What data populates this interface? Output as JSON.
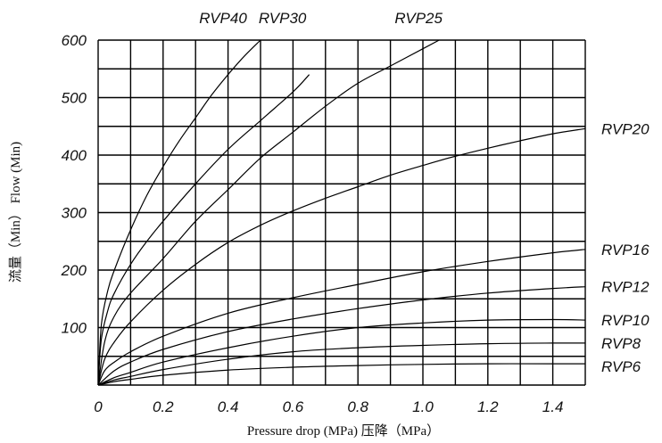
{
  "chart_data": {
    "type": "line",
    "xlabel": "Pressure drop (MPa)   压降（MPa）",
    "ylabel": "流量（Min）  Flow (Min)",
    "xlim": [
      0,
      1.5
    ],
    "ylim": [
      0,
      600
    ],
    "x_ticks": [
      {
        "v": 0,
        "t": "0"
      },
      {
        "v": 0.2,
        "t": "0.2"
      },
      {
        "v": 0.4,
        "t": "0.4"
      },
      {
        "v": 0.6,
        "t": "0.6"
      },
      {
        "v": 0.8,
        "t": "0.8"
      },
      {
        "v": 1.0,
        "t": "1.0"
      },
      {
        "v": 1.2,
        "t": "1.2"
      },
      {
        "v": 1.4,
        "t": "1.4"
      }
    ],
    "y_ticks": [
      {
        "v": 100,
        "t": "100"
      },
      {
        "v": 200,
        "t": "200"
      },
      {
        "v": 300,
        "t": "300"
      },
      {
        "v": 400,
        "t": "400"
      },
      {
        "v": 500,
        "t": "500"
      },
      {
        "v": 600,
        "t": "600"
      }
    ],
    "grid": true,
    "grid_x_step": 0.1,
    "grid_y_step": 50,
    "series": [
      {
        "name": "RVP40",
        "label_pos": "top",
        "x": [
          0,
          0.01,
          0.03,
          0.05,
          0.1,
          0.15,
          0.2,
          0.25,
          0.3,
          0.35,
          0.4,
          0.45,
          0.5
        ],
        "y": [
          0,
          105,
          165,
          200,
          270,
          330,
          380,
          425,
          465,
          505,
          540,
          572,
          600
        ]
      },
      {
        "name": "RVP30",
        "label_pos": "top",
        "x": [
          0,
          0.01,
          0.03,
          0.05,
          0.1,
          0.15,
          0.2,
          0.3,
          0.4,
          0.5,
          0.6,
          0.65
        ],
        "y": [
          0,
          80,
          130,
          160,
          210,
          250,
          285,
          350,
          410,
          460,
          510,
          540
        ]
      },
      {
        "name": "RVP25",
        "label_pos": "top",
        "x": [
          0,
          0.02,
          0.05,
          0.1,
          0.2,
          0.3,
          0.4,
          0.5,
          0.6,
          0.7,
          0.8,
          0.9,
          1.0,
          1.05
        ],
        "y": [
          0,
          75,
          120,
          160,
          220,
          285,
          340,
          395,
          440,
          485,
          525,
          555,
          585,
          600
        ]
      },
      {
        "name": "RVP20",
        "label_pos": "right",
        "x": [
          0,
          0.02,
          0.05,
          0.1,
          0.2,
          0.3,
          0.4,
          0.5,
          0.6,
          0.7,
          0.8,
          0.9,
          1.0,
          1.1,
          1.2,
          1.3,
          1.4,
          1.5
        ],
        "y": [
          0,
          45,
          75,
          110,
          165,
          210,
          248,
          278,
          303,
          325,
          345,
          365,
          382,
          398,
          412,
          425,
          437,
          446
        ]
      },
      {
        "name": "RVP16",
        "label_pos": "right",
        "x": [
          0,
          0.02,
          0.05,
          0.1,
          0.2,
          0.4,
          0.6,
          0.8,
          1.0,
          1.2,
          1.4,
          1.5
        ],
        "y": [
          0,
          25,
          40,
          58,
          85,
          125,
          152,
          175,
          197,
          215,
          230,
          236
        ]
      },
      {
        "name": "RVP12",
        "label_pos": "right",
        "x": [
          0,
          0.05,
          0.1,
          0.2,
          0.4,
          0.6,
          0.8,
          1.0,
          1.2,
          1.4,
          1.5
        ],
        "y": [
          0,
          25,
          40,
          62,
          93,
          115,
          133,
          148,
          160,
          168,
          171
        ]
      },
      {
        "name": "RVP10",
        "label_pos": "right",
        "x": [
          0,
          0.05,
          0.1,
          0.2,
          0.4,
          0.6,
          0.8,
          1.0,
          1.2,
          1.4,
          1.5
        ],
        "y": [
          0,
          13,
          22,
          40,
          65,
          85,
          100,
          108,
          113,
          114,
          113
        ]
      },
      {
        "name": "RVP8",
        "label_pos": "right",
        "x": [
          0,
          0.05,
          0.1,
          0.2,
          0.4,
          0.6,
          0.8,
          1.0,
          1.2,
          1.4,
          1.5
        ],
        "y": [
          0,
          9,
          15,
          27,
          45,
          58,
          65,
          69,
          72,
          73,
          73
        ]
      },
      {
        "name": "RVP6",
        "label_pos": "right",
        "x": [
          0,
          0.05,
          0.1,
          0.2,
          0.4,
          0.6,
          0.8,
          1.0,
          1.2,
          1.4,
          1.5
        ],
        "y": [
          0,
          6,
          10,
          17,
          26,
          31,
          34,
          36,
          37,
          37,
          37
        ]
      }
    ]
  }
}
